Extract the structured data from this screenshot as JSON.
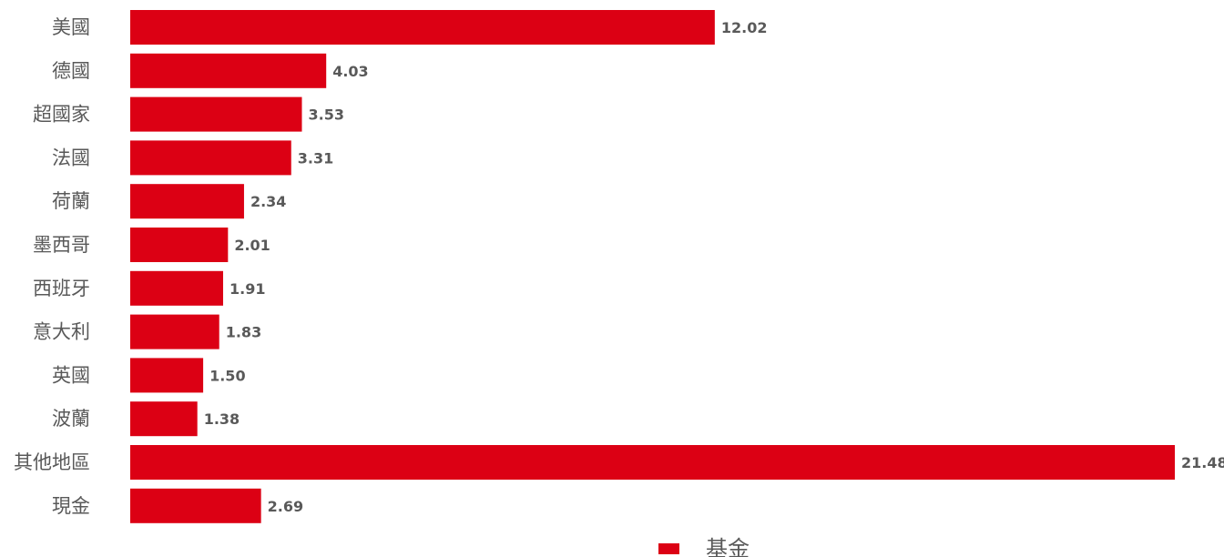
{
  "chart_data": {
    "type": "bar",
    "orientation": "horizontal",
    "categories": [
      "美國",
      "德國",
      "超國家",
      "法國",
      "荷蘭",
      "墨西哥",
      "西班牙",
      "意大利",
      "英國",
      "波蘭",
      "其他地區",
      "現金"
    ],
    "series": [
      {
        "name": "基金",
        "values": [
          12.02,
          4.03,
          3.53,
          3.31,
          2.34,
          2.01,
          1.91,
          1.83,
          1.5,
          1.38,
          21.48,
          2.69
        ],
        "value_labels": [
          "12.02",
          "4.03",
          "3.53",
          "3.31",
          "2.34",
          "2.01",
          "1.91",
          "1.83",
          "1.50",
          "1.38",
          "21.48",
          "2.69"
        ],
        "color": "#DC0014"
      }
    ],
    "xlim": [
      0,
      21.48
    ],
    "grid": false,
    "legend": "bottom-center"
  }
}
